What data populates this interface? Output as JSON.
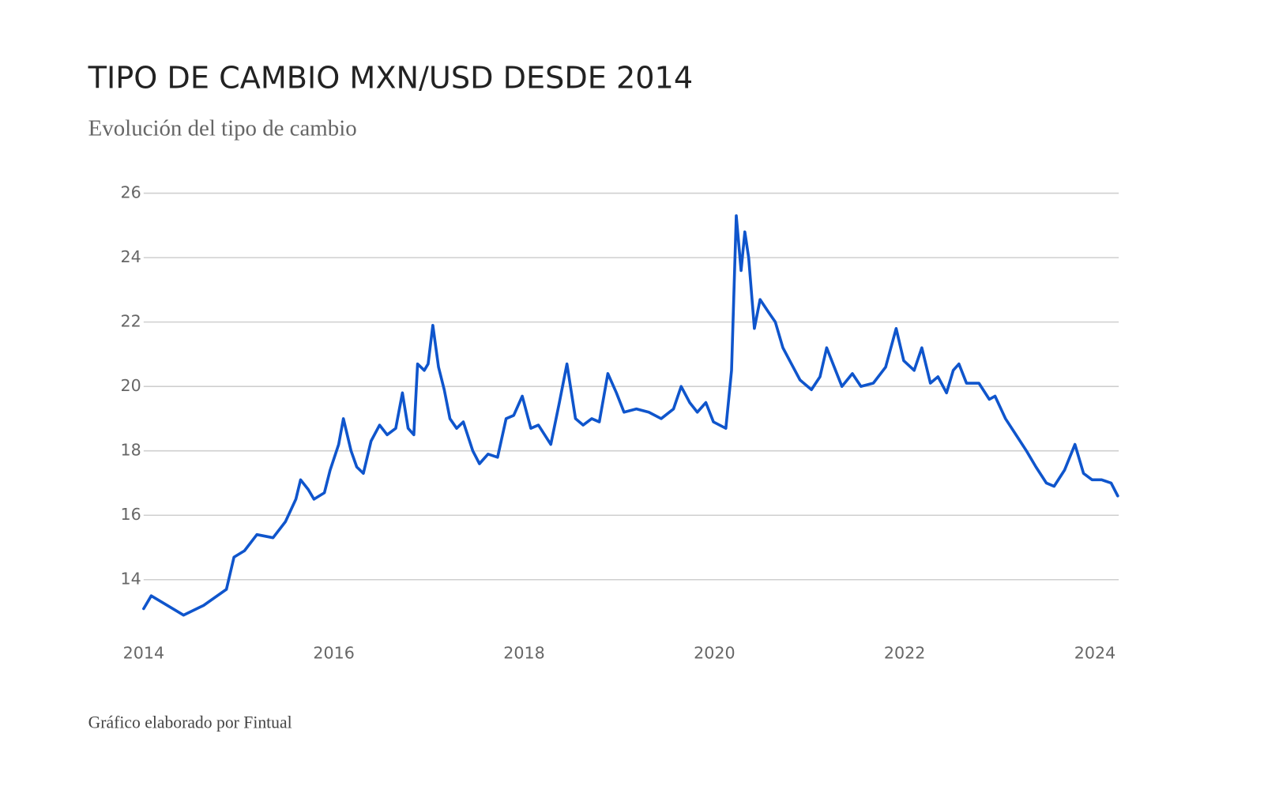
{
  "chart_data": {
    "type": "line",
    "title": "TIPO DE CAMBIO MXN/USD DESDE 2014",
    "subtitle": "Evolución del tipo de cambio",
    "footer": "Gráfico elaborado por Fintual",
    "color": "#0f55cc",
    "grid": true,
    "x": [
      2014.0,
      2014.08,
      2014.42,
      2014.63,
      2014.87,
      2014.95,
      2015.06,
      2015.19,
      2015.36,
      2015.49,
      2015.6,
      2015.65,
      2015.73,
      2015.79,
      2015.9,
      2015.96,
      2016.05,
      2016.1,
      2016.18,
      2016.24,
      2016.31,
      2016.39,
      2016.48,
      2016.56,
      2016.65,
      2016.72,
      2016.78,
      2016.84,
      2016.88,
      2016.95,
      2016.99,
      2017.04,
      2017.1,
      2017.16,
      2017.22,
      2017.29,
      2017.36,
      2017.46,
      2017.53,
      2017.62,
      2017.72,
      2017.81,
      2017.89,
      2017.98,
      2018.07,
      2018.15,
      2018.28,
      2018.37,
      2018.45,
      2018.54,
      2018.62,
      2018.71,
      2018.79,
      2018.88,
      2018.97,
      2019.05,
      2019.18,
      2019.31,
      2019.44,
      2019.57,
      2019.65,
      2019.74,
      2019.82,
      2019.91,
      2019.99,
      2020.12,
      2020.18,
      2020.23,
      2020.28,
      2020.32,
      2020.36,
      2020.42,
      2020.48,
      2020.57,
      2020.64,
      2020.72,
      2020.81,
      2020.9,
      2021.02,
      2021.11,
      2021.18,
      2021.26,
      2021.34,
      2021.45,
      2021.54,
      2021.67,
      2021.8,
      2021.91,
      2021.99,
      2022.1,
      2022.18,
      2022.27,
      2022.35,
      2022.44,
      2022.51,
      2022.57,
      2022.65,
      2022.78,
      2022.89,
      2022.95,
      2023.06,
      2023.17,
      2023.28,
      2023.38,
      2023.49,
      2023.57,
      2023.68,
      2023.79,
      2023.88,
      2023.97,
      2024.07,
      2024.17,
      2024.24
    ],
    "values": [
      13.1,
      13.5,
      12.9,
      13.2,
      13.7,
      14.7,
      14.9,
      15.4,
      15.3,
      15.8,
      16.5,
      17.1,
      16.8,
      16.5,
      16.7,
      17.4,
      18.2,
      19.0,
      18.0,
      17.5,
      17.3,
      18.3,
      18.8,
      18.5,
      18.7,
      19.8,
      18.7,
      18.5,
      20.7,
      20.5,
      20.7,
      21.9,
      20.6,
      19.9,
      19.0,
      18.7,
      18.9,
      18.0,
      17.6,
      17.9,
      17.8,
      19.0,
      19.1,
      19.7,
      18.7,
      18.8,
      18.2,
      19.5,
      20.7,
      19.0,
      18.8,
      19.0,
      18.9,
      20.4,
      19.8,
      19.2,
      19.3,
      19.2,
      19.0,
      19.3,
      20.0,
      19.5,
      19.2,
      19.5,
      18.9,
      18.7,
      20.5,
      25.3,
      23.6,
      24.8,
      24.0,
      21.8,
      22.7,
      22.3,
      22.0,
      21.2,
      20.7,
      20.2,
      19.9,
      20.3,
      21.2,
      20.6,
      20.0,
      20.4,
      20.0,
      20.1,
      20.6,
      21.8,
      20.8,
      20.5,
      21.2,
      20.1,
      20.3,
      19.8,
      20.5,
      20.7,
      20.1,
      20.1,
      19.6,
      19.7,
      19.0,
      18.5,
      18.0,
      17.5,
      17.0,
      16.9,
      17.4,
      18.2,
      17.3,
      17.1,
      17.1,
      17.0,
      16.6
    ],
    "xlim": [
      2014,
      2024.25
    ],
    "xticks": [
      2014,
      2016,
      2018,
      2020,
      2022,
      2024
    ],
    "ylim": [
      12,
      26
    ],
    "yticks": [
      14,
      16,
      18,
      20,
      22,
      24,
      26
    ]
  }
}
